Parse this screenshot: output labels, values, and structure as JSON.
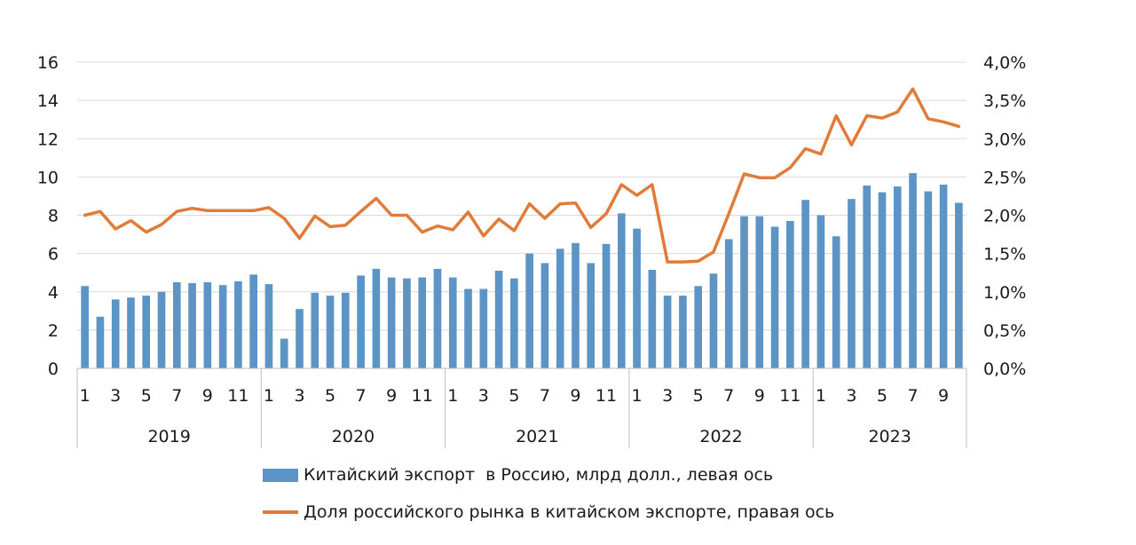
{
  "chart_data": {
    "type": "bar+line",
    "title": "",
    "years": [
      "2019",
      "2020",
      "2021",
      "2022",
      "2023"
    ],
    "months_per_year": [
      12,
      12,
      12,
      12,
      10
    ],
    "month_tick_labels": [
      "1",
      "3",
      "5",
      "7",
      "9",
      "11"
    ],
    "y_left": {
      "min": 0,
      "max": 16,
      "step": 2,
      "tick_labels": [
        "0",
        "2",
        "4",
        "6",
        "8",
        "10",
        "12",
        "14",
        "16"
      ]
    },
    "y_right": {
      "min": 0,
      "max": 4,
      "step": 0.5,
      "tick_labels": [
        "0,0%",
        "0,5%",
        "1,0%",
        "1,5%",
        "2,0%",
        "2,5%",
        "3,0%",
        "3,5%",
        "4,0%"
      ]
    },
    "grid": true,
    "legend_position": "bottom",
    "colors": {
      "bars": "#5b94c5",
      "line": "#e07b39",
      "grid": "#d9d9d9",
      "axis": "#bfbfbf"
    },
    "series": [
      {
        "name": "Китайский экспорт  в Россию, млрд долл., левая ось",
        "type": "bar",
        "axis": "left",
        "values": [
          4.3,
          2.7,
          3.6,
          3.7,
          3.8,
          4.0,
          4.5,
          4.45,
          4.5,
          4.35,
          4.55,
          4.9,
          4.4,
          1.55,
          3.1,
          3.95,
          3.8,
          3.95,
          4.85,
          5.2,
          4.75,
          4.7,
          4.75,
          5.2,
          4.75,
          4.15,
          4.15,
          5.1,
          4.7,
          6.0,
          5.5,
          6.25,
          6.55,
          5.5,
          6.5,
          8.1,
          7.3,
          5.15,
          3.8,
          3.8,
          4.3,
          4.95,
          6.75,
          7.95,
          7.95,
          7.4,
          7.7,
          8.8,
          8.0,
          6.9,
          8.85,
          9.55,
          9.2,
          9.5,
          10.2,
          9.25,
          9.6,
          8.65
        ]
      },
      {
        "name": "Доля российского рынка в китайском экспорте, правая ось",
        "type": "line",
        "axis": "right",
        "values": [
          2.0,
          2.05,
          1.82,
          1.93,
          1.78,
          1.88,
          2.05,
          2.09,
          2.06,
          2.06,
          2.06,
          2.06,
          2.1,
          1.96,
          1.7,
          1.99,
          1.85,
          1.87,
          2.05,
          2.22,
          2.0,
          2.0,
          1.78,
          1.86,
          1.81,
          2.04,
          1.73,
          1.95,
          1.8,
          2.15,
          1.96,
          2.15,
          2.16,
          1.84,
          2.02,
          2.4,
          2.26,
          2.4,
          1.39,
          1.39,
          1.4,
          1.52,
          2.02,
          2.54,
          2.49,
          2.49,
          2.62,
          2.87,
          2.8,
          3.3,
          2.92,
          3.3,
          3.27,
          3.35,
          3.65,
          3.26,
          3.22,
          3.16
        ]
      }
    ]
  }
}
